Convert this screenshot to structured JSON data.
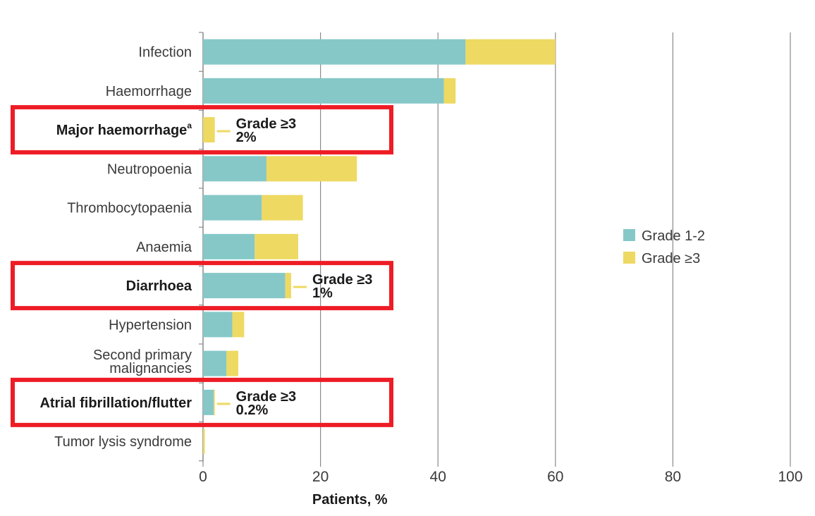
{
  "chart_data": {
    "type": "bar",
    "orientation": "horizontal",
    "stacked": true,
    "title": "",
    "xlabel": "Patients, %",
    "ylabel": "",
    "xlim": [
      0,
      100
    ],
    "xticks": [
      0,
      20,
      40,
      60,
      80,
      100
    ],
    "grid": true,
    "legend_position": "right",
    "categories": [
      "Infection",
      "Haemorrhage",
      "Major haemorrhage",
      "Neutropoenia",
      "Thrombocytopaenia",
      "Anaemia",
      "Diarrhoea",
      "Hypertension",
      "Second primary malignancies",
      "Atrial fibrillation/flutter",
      "Tumor lysis syndrome"
    ],
    "category_lines": [
      [
        "Infection"
      ],
      [
        "Haemorrhage"
      ],
      [
        "Major haemorrhage"
      ],
      [
        "Neutropoenia"
      ],
      [
        "Thrombocytopaenia"
      ],
      [
        "Anaemia"
      ],
      [
        "Diarrhoea"
      ],
      [
        "Hypertension"
      ],
      [
        "Second primary",
        "malignancies"
      ],
      [
        "Atrial fibrillation/flutter"
      ],
      [
        "Tumor lysis syndrome"
      ]
    ],
    "category_superscripts": [
      "",
      "",
      "a",
      "",
      "",
      "",
      "",
      "",
      "",
      "",
      ""
    ],
    "highlighted": [
      2,
      6,
      9
    ],
    "series": [
      {
        "name": "Grade 1-2",
        "color": "#86c8c8",
        "values": [
          44.7,
          41,
          0,
          10.8,
          10,
          8.8,
          14,
          5,
          4,
          1.8,
          0
        ]
      },
      {
        "name": "Grade ≥3",
        "color": "#eed962",
        "values": [
          15.3,
          2,
          2,
          15.4,
          7,
          7.4,
          1,
          2,
          2,
          0.2,
          0.3
        ]
      }
    ],
    "annotations": [
      {
        "category_index": 2,
        "line1": "Grade ≥3",
        "line2": "2%"
      },
      {
        "category_index": 6,
        "line1": "Grade ≥3",
        "line2": "1%"
      },
      {
        "category_index": 9,
        "line1": "Grade ≥3",
        "line2": "0.2%"
      }
    ],
    "highlight_color": "#ee1c25"
  }
}
